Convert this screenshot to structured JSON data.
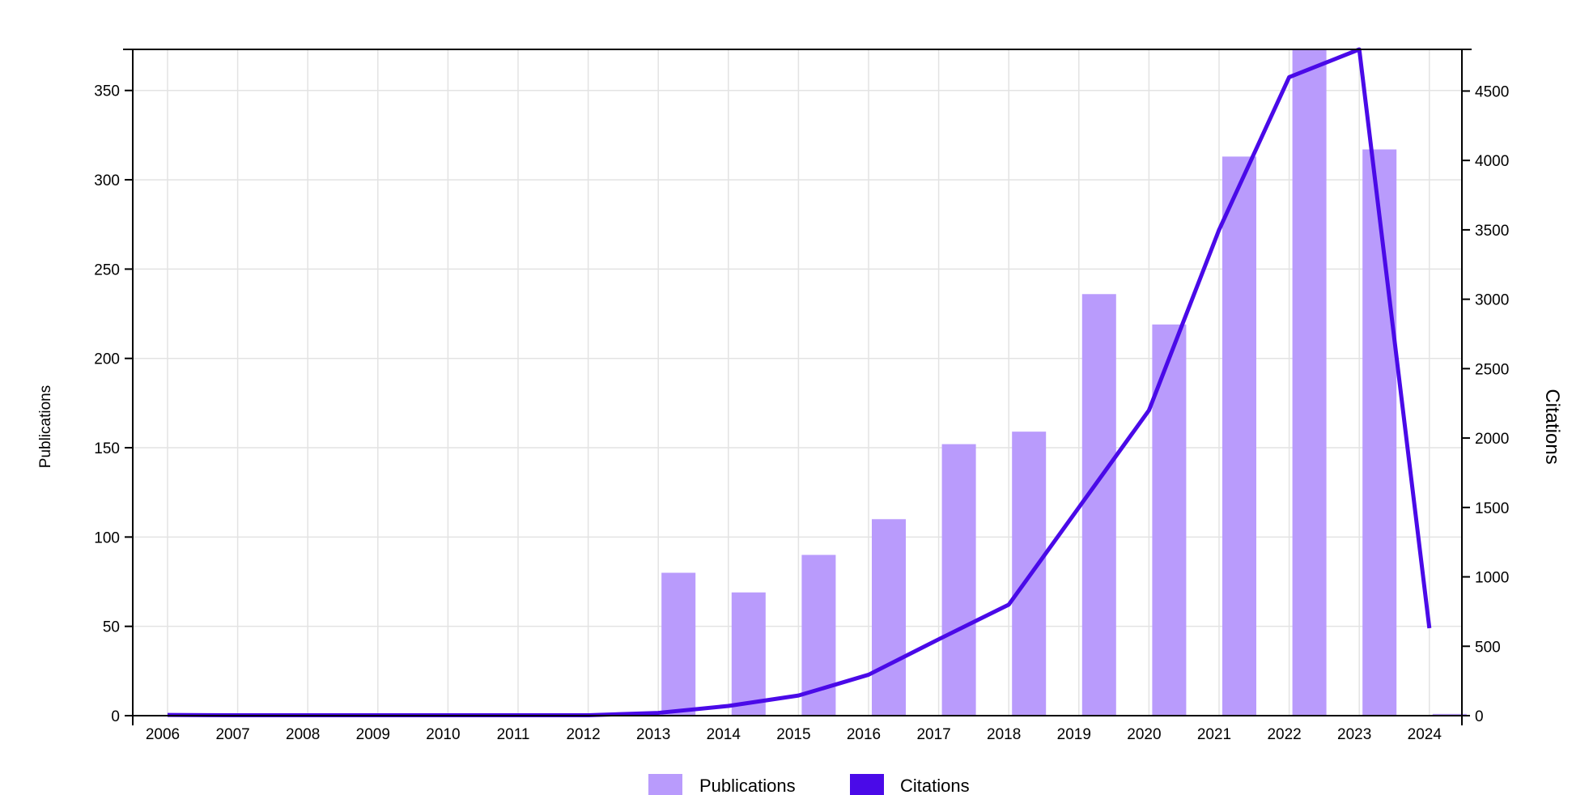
{
  "chart_data": {
    "type": "bar+line",
    "categories": [
      "2006",
      "2007",
      "2008",
      "2009",
      "2010",
      "2011",
      "2012",
      "2013",
      "2014",
      "2015",
      "2016",
      "2017",
      "2018",
      "2019",
      "2020",
      "2021",
      "2022",
      "2023",
      "2024"
    ],
    "series": [
      {
        "name": "Publications",
        "type": "bar",
        "axis": "left",
        "values": [
          0,
          0,
          0,
          0,
          0,
          0,
          0,
          80,
          69,
          90,
          110,
          152,
          159,
          236,
          219,
          313,
          373,
          317,
          1
        ]
      },
      {
        "name": "Citations",
        "type": "line",
        "axis": "right",
        "values": [
          5,
          3,
          3,
          3,
          3,
          3,
          3,
          20,
          70,
          145,
          295,
          550,
          800,
          1500,
          2200,
          3500,
          4600,
          4800,
          630
        ]
      }
    ],
    "y_left": {
      "label": "Publications",
      "lim": [
        0,
        373
      ],
      "ticks": [
        0,
        50,
        100,
        150,
        200,
        250,
        300,
        350
      ]
    },
    "y_right": {
      "label": "Citations",
      "lim": [
        0,
        4800
      ],
      "ticks": [
        0,
        500,
        1000,
        1500,
        2000,
        2500,
        3000,
        3500,
        4000,
        4500
      ]
    },
    "xlabel": "",
    "title": "",
    "grid": true,
    "legend_position": "bottom-center",
    "colors": {
      "publications": "#b99bfc",
      "citations": "#4a0ae8",
      "grid": "#e3e3e3",
      "axis": "#000000"
    }
  }
}
